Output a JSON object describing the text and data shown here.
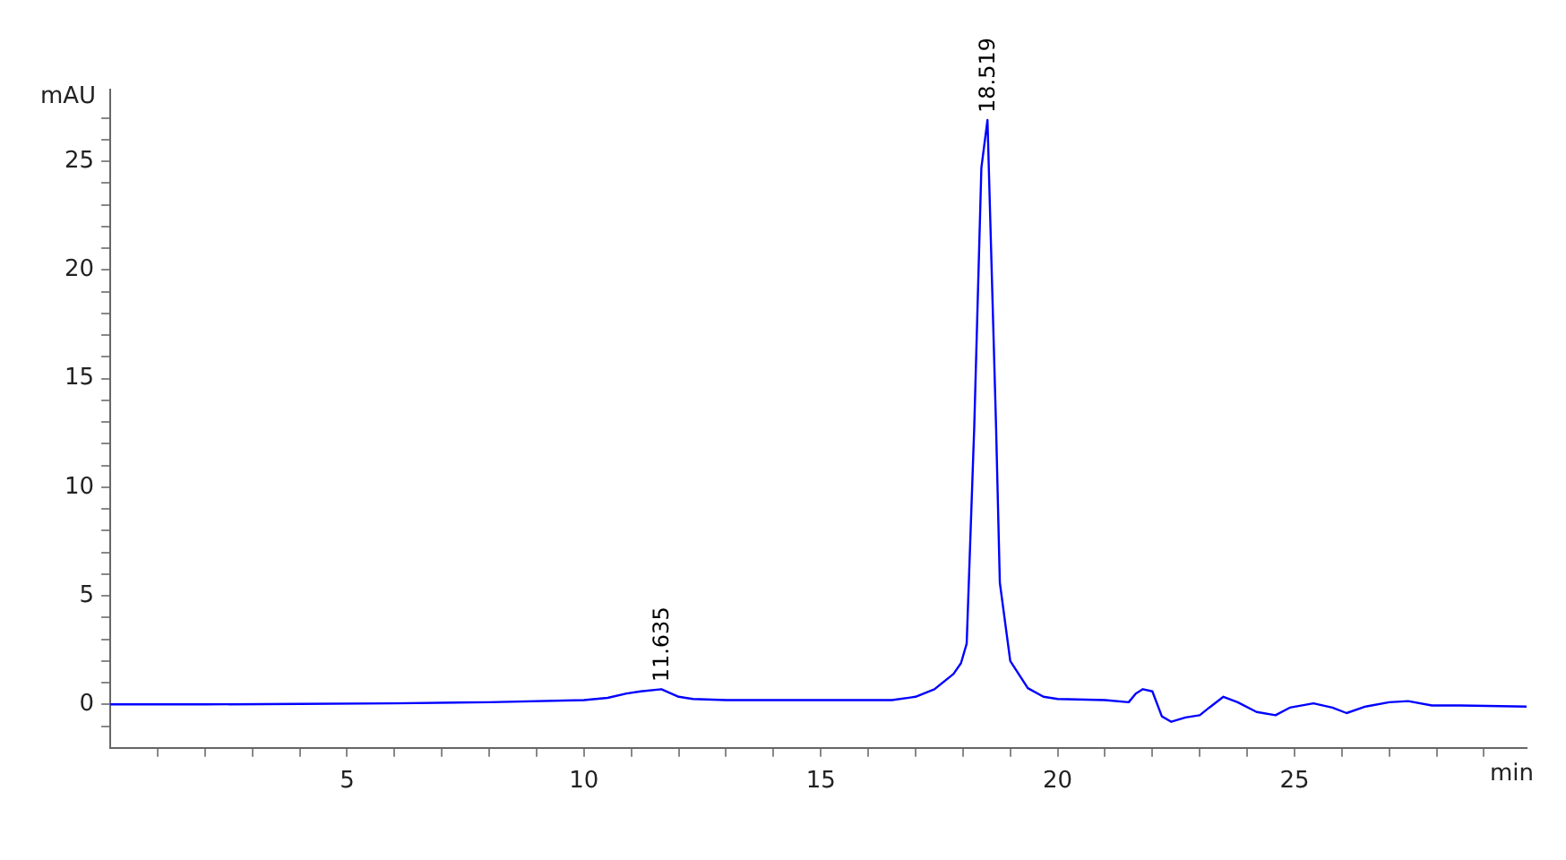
{
  "chart_data": {
    "type": "line",
    "xlabel": "min",
    "ylabel": "mAU",
    "x": [
      0,
      2,
      4,
      6,
      8,
      10,
      10.5,
      10.9,
      11.2,
      11.635,
      12.0,
      12.3,
      13,
      14,
      15,
      16,
      16.5,
      17.0,
      17.4,
      17.8,
      17.96,
      18.08,
      18.24,
      18.39,
      18.519,
      18.7,
      18.78,
      19.0,
      19.37,
      19.7,
      20.0,
      21.0,
      21.5,
      21.65,
      21.8,
      22.0,
      22.2,
      22.4,
      22.7,
      23.0,
      23.2,
      23.5,
      23.8,
      24.2,
      24.6,
      24.9,
      25.4,
      25.8,
      26.1,
      26.5,
      27.0,
      27.4,
      27.9,
      28.5,
      29.9
    ],
    "series": [
      {
        "color": "#0000ff",
        "values": [
          0,
          0,
          0.02,
          0.05,
          0.1,
          0.2,
          0.3,
          0.5,
          0.6,
          0.7,
          0.35,
          0.25,
          0.2,
          0.2,
          0.2,
          0.2,
          0.2,
          0.35,
          0.7,
          1.4,
          1.9,
          2.8,
          12.8,
          24.7,
          26.9,
          12.8,
          5.6,
          2.0,
          0.75,
          0.35,
          0.25,
          0.2,
          0.1,
          0.5,
          0.7,
          0.6,
          -0.55,
          -0.8,
          -0.6,
          -0.5,
          -0.15,
          0.35,
          0.1,
          -0.35,
          -0.5,
          -0.15,
          0.05,
          -0.15,
          -0.4,
          -0.1,
          0.1,
          0.15,
          -0.05,
          -0.05,
          -0.1
        ]
      }
    ],
    "xlim": [
      0,
      29.9
    ],
    "ylim": [
      -2,
      28.3
    ],
    "xticks": [
      {
        "value": 1,
        "label": null
      },
      {
        "value": 2,
        "label": null
      },
      {
        "value": 3,
        "label": null
      },
      {
        "value": 4,
        "label": null
      },
      5,
      {
        "value": 6,
        "label": null
      },
      {
        "value": 7,
        "label": null
      },
      {
        "value": 8,
        "label": null
      },
      {
        "value": 9,
        "label": null
      },
      10,
      {
        "value": 11,
        "label": null
      },
      {
        "value": 12,
        "label": null
      },
      {
        "value": 13,
        "label": null
      },
      {
        "value": 14,
        "label": null
      },
      15,
      {
        "value": 16,
        "label": null
      },
      {
        "value": 17,
        "label": null
      },
      {
        "value": 18,
        "label": null
      },
      {
        "value": 19,
        "label": null
      },
      20,
      {
        "value": 21,
        "label": null
      },
      {
        "value": 22,
        "label": null
      },
      {
        "value": 23,
        "label": null
      },
      {
        "value": 24,
        "label": null
      },
      25,
      {
        "value": 26,
        "label": null
      },
      {
        "value": 27,
        "label": null
      },
      {
        "value": 28,
        "label": null
      },
      {
        "value": 29,
        "label": null
      }
    ],
    "yticks": [
      {
        "value": -1,
        "label": null
      },
      0,
      {
        "value": 1,
        "label": null
      },
      {
        "value": 2,
        "label": null
      },
      {
        "value": 3,
        "label": null
      },
      {
        "value": 4,
        "label": null
      },
      5,
      {
        "value": 6,
        "label": null
      },
      {
        "value": 7,
        "label": null
      },
      {
        "value": 8,
        "label": null
      },
      {
        "value": 9,
        "label": null
      },
      10,
      {
        "value": 11,
        "label": null
      },
      {
        "value": 12,
        "label": null
      },
      {
        "value": 13,
        "label": null
      },
      {
        "value": 14,
        "label": null
      },
      15,
      {
        "value": 16,
        "label": null
      },
      {
        "value": 17,
        "label": null
      },
      {
        "value": 18,
        "label": null
      },
      {
        "value": 19,
        "label": null
      },
      20,
      {
        "value": 21,
        "label": null
      },
      {
        "value": 22,
        "label": null
      },
      {
        "value": 23,
        "label": null
      },
      {
        "value": 24,
        "label": null
      },
      25,
      {
        "value": 26,
        "label": null
      },
      {
        "value": 27,
        "label": null
      }
    ],
    "annotations": [
      {
        "text": "11.635",
        "x": 11.635,
        "y": 0.7
      },
      {
        "text": "18.519",
        "x": 18.519,
        "y": 26.9
      }
    ],
    "grid": false,
    "legend": false,
    "marker": "none",
    "line_style": "solid"
  }
}
